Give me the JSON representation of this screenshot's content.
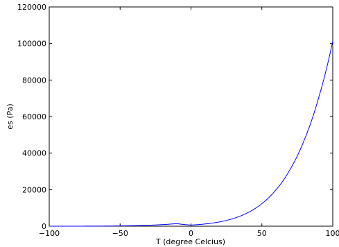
{
  "chart_data": {
    "type": "line",
    "title": "",
    "xlabel": "T (degree Celcius)",
    "ylabel": "es (Pa)",
    "xlim": [
      -100,
      100
    ],
    "ylim": [
      0,
      120000
    ],
    "x_ticks": [
      -100,
      -50,
      0,
      50,
      100
    ],
    "x_tick_labels": [
      "−100",
      "−50",
      "0",
      "50",
      "100"
    ],
    "y_ticks": [
      0,
      20000,
      40000,
      60000,
      80000,
      100000,
      120000
    ],
    "y_tick_labels": [
      "0",
      "20000",
      "40000",
      "60000",
      "80000",
      "100000",
      "120000"
    ],
    "grid": false,
    "series": [
      {
        "color": "#0000ff",
        "x": [
          -100,
          -90,
          -80,
          -70,
          -60,
          -50,
          -40,
          -30,
          -20,
          -10,
          0,
          10,
          20,
          30,
          40,
          50,
          60,
          70,
          80,
          90,
          100
        ],
        "y": [
          2,
          6,
          15,
          36,
          80,
          160,
          300,
          520,
          880,
          1430,
          611,
          1228,
          2339,
          4246,
          7384,
          12352,
          19946,
          31201,
          47414,
          70182,
          101419
        ]
      }
    ]
  }
}
